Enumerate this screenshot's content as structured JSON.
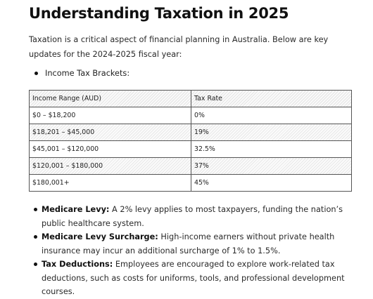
{
  "title": "Understanding Taxation in 2025",
  "intro": "Taxation is a critical aspect of financial planning in Australia. Below are key updates for the 2024-2025 fiscal year:",
  "brackets_label": "Income Tax Brackets:",
  "table": {
    "headers": [
      "Income Range (AUD)",
      "Tax Rate"
    ],
    "rows": [
      [
        "$0 – $18,200",
        "0%"
      ],
      [
        "$18,201 – $45,000",
        "19%"
      ],
      [
        "$45,001 – $120,000",
        "32.5%"
      ],
      [
        "$120,001 – $180,000",
        "37%"
      ],
      [
        "$180,001+",
        "45%"
      ]
    ]
  },
  "notes": [
    {
      "term": "Medicare Levy:",
      "text": " A 2% levy applies to most taxpayers, funding the nation’s public healthcare system."
    },
    {
      "term": "Medicare Levy Surcharge:",
      "text": " High-income earners without private health insurance may incur an additional surcharge of 1% to 1.5%."
    },
    {
      "term": "Tax Deductions:",
      "text": " Employees are encouraged to explore work-related tax deductions, such as costs for uniforms, tools, and professional development courses."
    }
  ]
}
